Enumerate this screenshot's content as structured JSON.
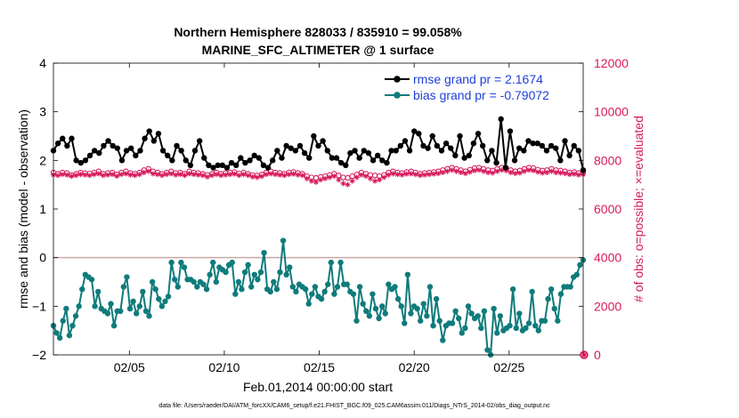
{
  "chart_data": {
    "type": "line",
    "title_line1": "Northern Hemisphere 828033 / 835910 = 99.058%",
    "title_line2": "MARINE_SFC_ALTIMETER @ 1 surface",
    "xlabel": "Feb.01,2014 00:00:00 start",
    "ylabel_left": "rmse and bias (model - observation)",
    "ylabel_right": "# of obs: o=possible; ×=evaluated",
    "ylim_left": [
      -2,
      4
    ],
    "ylim_right": [
      0,
      12000
    ],
    "xlim_days": [
      1,
      28.9
    ],
    "x_ticks": [
      {
        "day": 5,
        "label": "02/05"
      },
      {
        "day": 10,
        "label": "02/10"
      },
      {
        "day": 15,
        "label": "02/15"
      },
      {
        "day": 20,
        "label": "02/20"
      },
      {
        "day": 25,
        "label": "02/25"
      }
    ],
    "y_ticks_left": [
      {
        "value": -2,
        "label": "−2"
      },
      {
        "value": -1,
        "label": "−1"
      },
      {
        "value": 0,
        "label": "0"
      },
      {
        "value": 1,
        "label": "1"
      },
      {
        "value": 2,
        "label": "2"
      },
      {
        "value": 3,
        "label": "3"
      },
      {
        "value": 4,
        "label": "4"
      }
    ],
    "y_ticks_right": [
      {
        "value": 0,
        "label": "0"
      },
      {
        "value": 2000,
        "label": "2000"
      },
      {
        "value": 4000,
        "label": "4000"
      },
      {
        "value": 6000,
        "label": "6000"
      },
      {
        "value": 8000,
        "label": "8000"
      },
      {
        "value": 10000,
        "label": "10000"
      },
      {
        "value": 12000,
        "label": "12000"
      }
    ],
    "colors": {
      "rmse": "#000000",
      "bias": "#0f7b7b",
      "obs": "#d6195c",
      "zero_line": "#c8a8a8",
      "legend_text": "#1f3fd6"
    },
    "legend": [
      {
        "key": "rmse",
        "label": "rmse grand pr = 2.1674"
      },
      {
        "key": "bias",
        "label": "bias grand pr = -0.79072"
      }
    ],
    "series": [
      {
        "name": "rmse",
        "values": [
          2.2,
          2.35,
          2.45,
          2.3,
          2.45,
          2.0,
          1.95,
          2.0,
          2.1,
          2.2,
          2.15,
          2.3,
          2.4,
          2.3,
          2.25,
          2.0,
          2.2,
          2.25,
          2.1,
          2.2,
          2.45,
          2.6,
          2.4,
          2.55,
          2.2,
          2.1,
          2.0,
          2.3,
          2.2,
          2.0,
          1.9,
          2.2,
          2.4,
          2.05,
          1.9,
          1.85,
          1.9,
          1.9,
          1.85,
          1.95,
          1.9,
          2.05,
          1.95,
          2.0,
          2.1,
          2.05,
          1.9,
          1.85,
          2.0,
          2.2,
          2.05,
          2.3,
          2.25,
          2.2,
          2.3,
          2.15,
          2.05,
          2.5,
          2.3,
          2.4,
          2.2,
          2.05,
          2.05,
          1.95,
          1.9,
          2.15,
          2.2,
          2.05,
          2.2,
          2.15,
          2.0,
          2.1,
          2.0,
          1.95,
          2.2,
          2.2,
          2.3,
          2.4,
          2.2,
          2.6,
          2.55,
          2.3,
          2.25,
          2.5,
          2.3,
          2.2,
          2.35,
          2.25,
          2.1,
          2.5,
          2.05,
          2.1,
          2.35,
          2.55,
          2.3,
          2.0,
          2.2,
          1.95,
          2.85,
          1.85,
          2.6,
          2.0,
          2.25,
          2.2,
          2.4,
          2.35,
          2.35,
          2.3,
          2.2,
          2.3,
          2.25,
          2.0,
          2.4,
          2.1,
          2.3,
          2.2,
          1.8
        ]
      },
      {
        "name": "bias",
        "values": [
          -1.4,
          -1.55,
          -1.65,
          -1.3,
          -1.05,
          -1.6,
          -1.4,
          -1.2,
          -1.0,
          -0.65,
          -0.35,
          -0.4,
          -0.45,
          -1.0,
          -0.7,
          -1.05,
          -1.1,
          -1.15,
          -0.95,
          -1.4,
          -1.1,
          -1.1,
          -0.6,
          -0.4,
          -1.05,
          -0.9,
          -1.15,
          -1.0,
          -0.7,
          -1.1,
          -1.2,
          -0.5,
          -0.65,
          -0.85,
          -1.0,
          -0.9,
          -0.8,
          -0.1,
          -0.45,
          -0.6,
          -0.1,
          -0.2,
          -0.45,
          -0.45,
          -0.5,
          -0.6,
          -0.5,
          -0.55,
          -0.65,
          -0.35,
          -0.1,
          -0.5,
          -0.2,
          -0.25,
          -0.3,
          -0.15,
          -0.1,
          -0.75,
          -0.5,
          -0.65,
          -0.3,
          -0.15,
          -0.6,
          -0.35,
          -0.45,
          -0.3,
          0.1,
          -0.65,
          -0.7,
          -0.5,
          -0.65,
          -0.3,
          0.35,
          -0.35,
          -0.2,
          -0.6,
          -0.7,
          -0.55,
          -0.6,
          -0.65,
          -0.95,
          -0.75,
          -0.6,
          -0.8,
          -0.85,
          -0.7,
          -0.55,
          -0.1,
          -0.75,
          -0.6,
          -0.1,
          -0.55,
          -0.55,
          -0.7,
          -0.75,
          -1.3,
          -0.6,
          -0.95,
          -1.1,
          -1.2,
          -0.75,
          -1.05,
          -1.25,
          -1.0,
          -1.15,
          -0.55,
          -0.65,
          -0.6,
          -0.85,
          -1.0,
          -1.35,
          -0.35,
          -1.15,
          -1.0,
          -1.05,
          -1.3,
          -0.95,
          -1.2,
          -0.6,
          -1.4,
          -0.85,
          -1.3,
          -1.7,
          -1.4,
          -1.35,
          -1.35,
          -1.1,
          -1.25,
          -1.55,
          -1.45,
          -1.0,
          -1.15,
          -1.25,
          -1.2,
          -1.45,
          -1.1,
          -1.9,
          -2.0,
          -1.05,
          -1.55,
          -1.2,
          -1.5,
          -1.45,
          -1.4,
          -0.65,
          -1.45,
          -1.15,
          -1.5,
          -1.45,
          -1.35,
          -0.7,
          -1.4,
          -1.5,
          -1.3,
          -1.3,
          -0.85,
          -0.65,
          -1.05,
          -1.3,
          -0.75,
          -0.6,
          -0.6,
          -0.6,
          -0.4,
          -0.35,
          -0.15,
          -0.05
        ]
      },
      {
        "name": "obs_possible",
        "values": [
          7500,
          7450,
          7500,
          7480,
          7400,
          7450,
          7500,
          7480,
          7460,
          7500,
          7550,
          7450,
          7480,
          7500,
          7420,
          7500,
          7550,
          7480,
          7450,
          7500,
          7600,
          7650,
          7550,
          7500,
          7450,
          7500,
          7550,
          7480,
          7500,
          7450,
          7550,
          7500,
          7480,
          7450,
          7400,
          7450,
          7500,
          7450,
          7480,
          7500,
          7520,
          7460,
          7500,
          7450,
          7400,
          7380,
          7420,
          7500,
          7550,
          7500,
          7480,
          7450,
          7500,
          7520,
          7480,
          7450,
          7350,
          7300,
          7280,
          7320,
          7350,
          7400,
          7450,
          7380,
          7300,
          7280,
          7350,
          7420,
          7500,
          7450,
          7400,
          7380,
          7350,
          7400,
          7500,
          7550,
          7500,
          7480,
          7520,
          7550,
          7500,
          7450,
          7480,
          7500,
          7520,
          7550,
          7600,
          7650,
          7700,
          7650,
          7600,
          7550,
          7620,
          7680,
          7700,
          7650,
          7600,
          7580,
          7650,
          7700,
          7680,
          7600,
          7550,
          7580,
          7650,
          7700,
          7680,
          7620,
          7580,
          7600,
          7650,
          7600,
          7580,
          7550,
          7500,
          7520,
          7480,
          7500
        ]
      },
      {
        "name": "obs_evaluated",
        "values": [
          7400,
          7380,
          7420,
          7400,
          7350,
          7380,
          7420,
          7400,
          7380,
          7420,
          7450,
          7380,
          7400,
          7420,
          7350,
          7420,
          7450,
          7400,
          7380,
          7420,
          7500,
          7550,
          7450,
          7420,
          7380,
          7420,
          7450,
          7400,
          7420,
          7380,
          7450,
          7420,
          7400,
          7380,
          7320,
          7380,
          7420,
          7380,
          7400,
          7420,
          7440,
          7380,
          7420,
          7380,
          7320,
          7300,
          7340,
          7420,
          7450,
          7420,
          7400,
          7380,
          7420,
          7440,
          7400,
          7380,
          7250,
          7150,
          7100,
          7200,
          7250,
          7300,
          7350,
          7200,
          7050,
          7000,
          7150,
          7300,
          7400,
          7350,
          7250,
          7150,
          7200,
          7300,
          7400,
          7450,
          7420,
          7400,
          7440,
          7450,
          7420,
          7380,
          7400,
          7420,
          7440,
          7460,
          7500,
          7550,
          7600,
          7550,
          7500,
          7460,
          7520,
          7580,
          7600,
          7550,
          7500,
          7480,
          7550,
          7600,
          7580,
          7500,
          7460,
          7480,
          7550,
          7600,
          7580,
          7520,
          7480,
          7500,
          7550,
          7500,
          7480,
          7460,
          7420,
          7440,
          7400,
          7420
        ]
      }
    ],
    "offplot_marker_value": 0
  },
  "footer": {
    "data_file": "data file: /Users/raeder/DAI/ATM_forcXX/CAM6_setup/f.e21.FHIST_BGC.f09_025.CAM6assim.011/Diags_NTrS_2014-02/obs_diag_output.nc"
  }
}
